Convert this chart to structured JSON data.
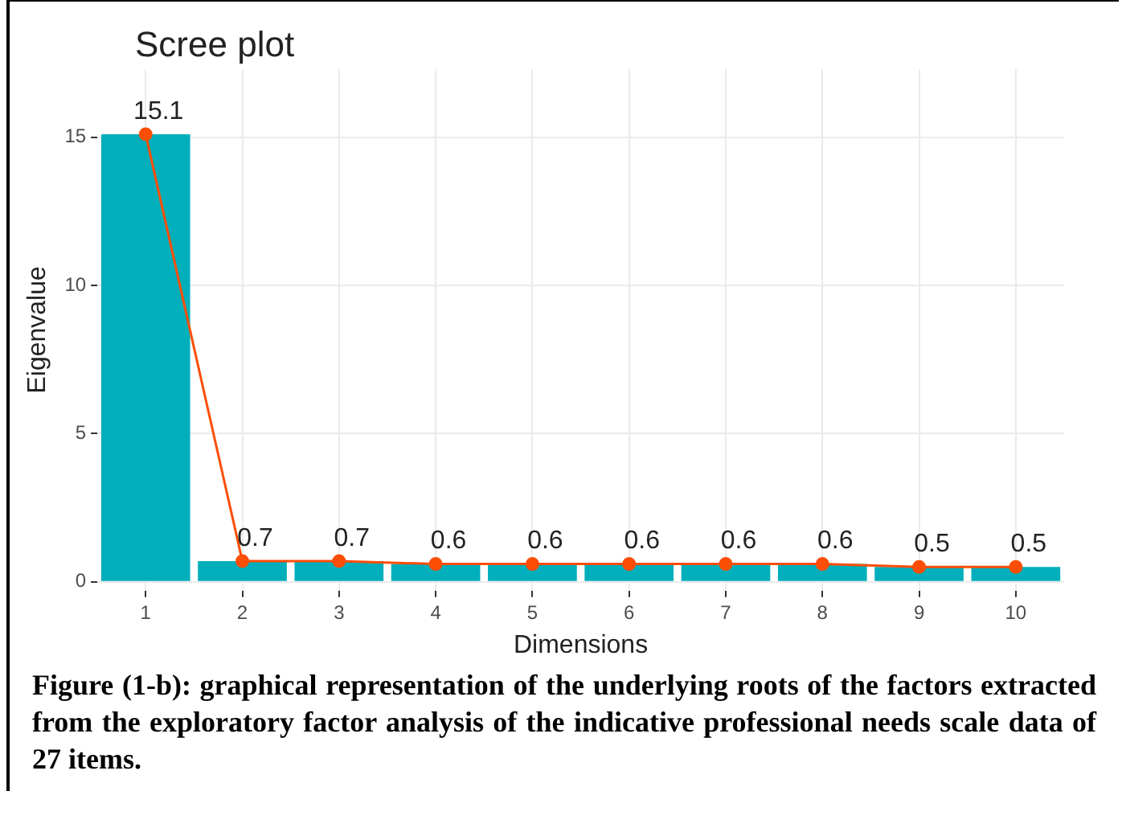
{
  "chart_data": {
    "type": "bar",
    "title": "Scree plot",
    "xlabel": "Dimensions",
    "ylabel": "Eigenvalue",
    "categories": [
      "1",
      "2",
      "3",
      "4",
      "5",
      "6",
      "7",
      "8",
      "9",
      "10"
    ],
    "series": [
      {
        "color": "#00afbb",
        "values": [
          15.1,
          0.7,
          0.7,
          0.6,
          0.6,
          0.6,
          0.6,
          0.6,
          0.5,
          0.5
        ]
      },
      {
        "type": "line",
        "color": "#fc4e07",
        "values": [
          15.1,
          0.7,
          0.7,
          0.6,
          0.6,
          0.6,
          0.6,
          0.6,
          0.5,
          0.5
        ],
        "value_labels": [
          "15.1",
          "0.7",
          "0.7",
          "0.6",
          "0.6",
          "0.6",
          "0.6",
          "0.6",
          "0.5",
          "0.5"
        ]
      }
    ],
    "ylim": [
      -0.3,
      17.3
    ],
    "yticks": [
      0,
      5,
      10,
      15
    ],
    "grid": true,
    "legend": false,
    "marker": "circle",
    "line_style": "solid",
    "annotations": [
      "Figure (1-b): graphical representation of the underlying roots of the factors extracted from the exploratory factor analysis of the indicative professional needs scale data of 27 items."
    ]
  }
}
